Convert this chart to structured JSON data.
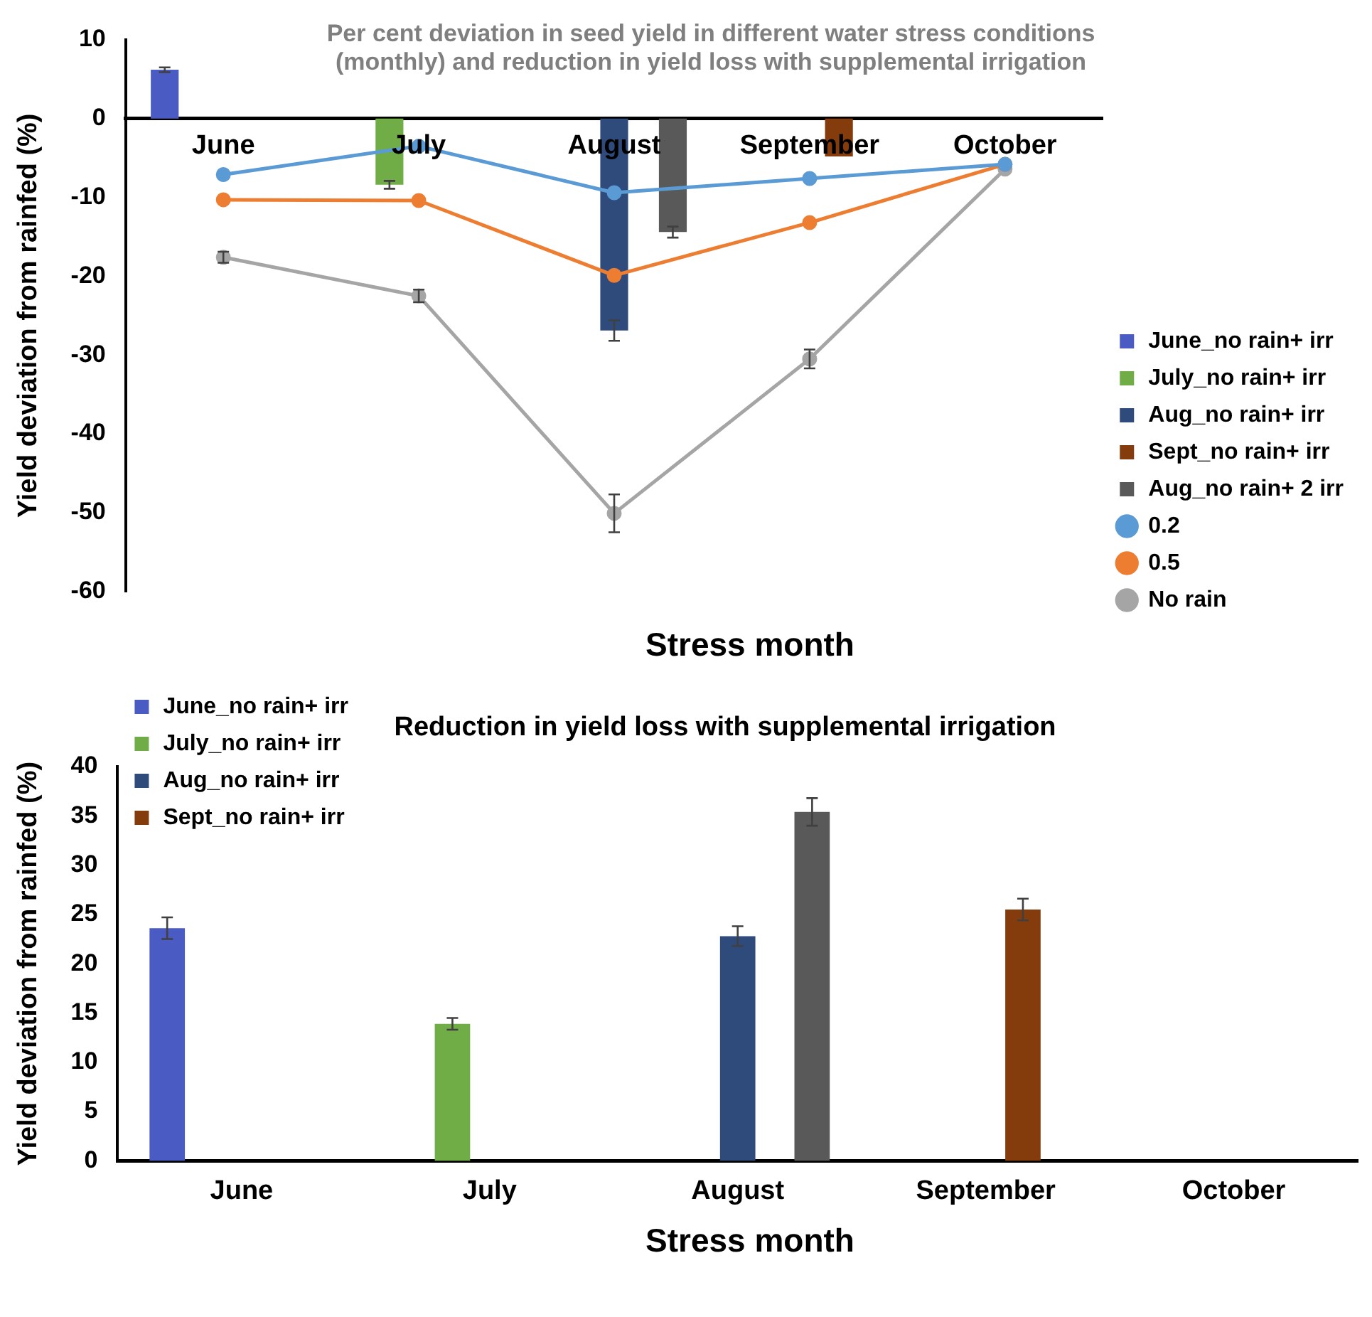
{
  "chart_data": [
    {
      "type": "bar",
      "title": "Per cent deviation in seed yield in different water stress conditions (monthly) and reduction in yield loss with supplemental irrigation",
      "xlabel": "Stress month",
      "ylabel": "Yield deviation from rainfed (%)",
      "categories": [
        "June",
        "July",
        "August",
        "September",
        "October"
      ],
      "ylim": [
        -60,
        10
      ],
      "yticks": [
        -60,
        -50,
        -40,
        -30,
        -20,
        -10,
        0,
        10
      ],
      "grid": false,
      "legend": "right",
      "series": [
        {
          "name": "June_no rain+ irr",
          "color": "#4a5bc4",
          "values": [
            6.2,
            null,
            null,
            null,
            null
          ],
          "errors": [
            0.3,
            null,
            null,
            null,
            null
          ]
        },
        {
          "name": "July_no rain+ irr",
          "color": "#70ad47",
          "values": [
            null,
            -8.4,
            null,
            null,
            null
          ],
          "errors": [
            null,
            0.5,
            null,
            null,
            null
          ]
        },
        {
          "name": "Aug_no rain+ irr",
          "color": "#2f4b7c",
          "values": [
            null,
            null,
            -26.9,
            null,
            null
          ],
          "errors": [
            null,
            null,
            1.3,
            null,
            null
          ]
        },
        {
          "name": "Sept_no rain+ irr",
          "color": "#843c0c",
          "values": [
            null,
            null,
            null,
            -4.8,
            null
          ]
        },
        {
          "name": "Aug_no rain+ 2 irr",
          "color": "#595959",
          "values": [
            null,
            null,
            -14.4,
            null,
            null
          ],
          "errors": [
            null,
            null,
            0.7,
            null,
            null
          ]
        },
        {
          "name": "0.2",
          "type": "line",
          "marker": "circle",
          "color": "#5b9bd5",
          "values": [
            -7.1,
            -3.5,
            -9.4,
            -7.6,
            -5.8
          ]
        },
        {
          "name": "0.5",
          "type": "line",
          "marker": "circle",
          "color": "#ed7d31",
          "values": [
            -10.3,
            -10.4,
            -19.9,
            -13.2,
            -5.8
          ]
        },
        {
          "name": "No rain",
          "type": "line",
          "marker": "circle",
          "color": "#a5a5a5",
          "values": [
            -17.6,
            -22.5,
            -50.1,
            -30.5,
            -6.4
          ],
          "errors": [
            0.7,
            0.8,
            2.4,
            1.2,
            null
          ]
        }
      ]
    },
    {
      "type": "bar",
      "title": "Reduction in yield loss with supplemental irrigation",
      "xlabel": "Stress month",
      "ylabel": "Yield deviation from rainfed (%)",
      "categories": [
        "June",
        "July",
        "August",
        "September",
        "October"
      ],
      "ylim": [
        0,
        40
      ],
      "yticks": [
        0,
        5,
        10,
        15,
        20,
        25,
        30,
        35,
        40
      ],
      "grid": false,
      "legend": "top left",
      "series": [
        {
          "name": "June_no rain+ irr",
          "color": "#4a5bc4",
          "values": [
            23.6,
            null,
            null,
            null,
            null
          ],
          "errors": [
            1.1,
            null,
            null,
            null,
            null
          ]
        },
        {
          "name": "July_no rain+ irr",
          "color": "#70ad47",
          "values": [
            null,
            13.9,
            null,
            null,
            null
          ],
          "errors": [
            null,
            0.6,
            null,
            null,
            null
          ]
        },
        {
          "name": "Aug_no rain+ irr",
          "color": "#2f4b7c",
          "values": [
            null,
            null,
            22.8,
            null,
            null
          ],
          "errors": [
            null,
            null,
            1.0,
            null,
            null
          ]
        },
        {
          "name": "Sept_no rain+ irr",
          "color": "#843c0c",
          "values": [
            null,
            null,
            null,
            25.5,
            null
          ],
          "errors": [
            null,
            null,
            null,
            1.1,
            null
          ]
        },
        {
          "color": "#595959",
          "values": [
            null,
            null,
            35.4,
            null,
            null
          ],
          "errors": [
            null,
            null,
            1.4,
            null,
            null
          ]
        }
      ]
    }
  ]
}
